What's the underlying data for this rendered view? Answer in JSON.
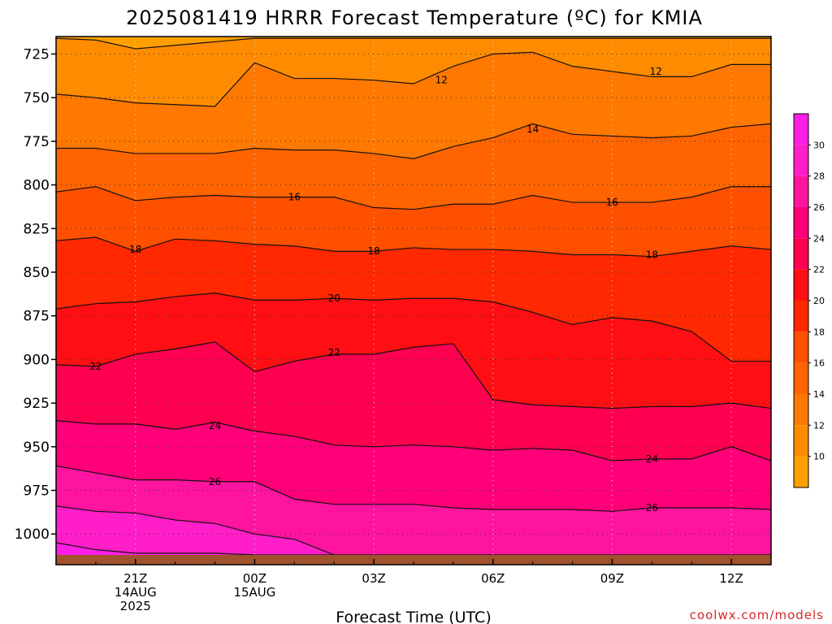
{
  "chart_data": {
    "type": "heatmap",
    "title": "2025081419 HRRR Forecast Temperature (ºC) for KMIA",
    "xlabel": "Forecast Time (UTC)",
    "ylabel": "",
    "credit": "coolwx.com/models",
    "y_axis": {
      "label": "",
      "inverted": true,
      "ylim": [
        1012,
        715
      ],
      "ticks": [
        725,
        750,
        775,
        800,
        825,
        850,
        875,
        900,
        925,
        950,
        975,
        1000
      ]
    },
    "x_axis": {
      "ticks": [
        {
          "label": "21Z",
          "line2": "14AUG",
          "line3": "2025",
          "hour": 2
        },
        {
          "label": "00Z",
          "line2": "15AUG",
          "line3": "",
          "hour": 5
        },
        {
          "label": "03Z",
          "line2": "",
          "line3": "",
          "hour": 8
        },
        {
          "label": "06Z",
          "line2": "",
          "line3": "",
          "hour": 11
        },
        {
          "label": "09Z",
          "line2": "",
          "line3": "",
          "hour": 14
        },
        {
          "label": "12Z",
          "line2": "",
          "line3": "",
          "hour": 17
        }
      ],
      "xlim": [
        0,
        18
      ]
    },
    "grid": true,
    "colorbar": {
      "levels": [
        8,
        10,
        12,
        14,
        16,
        18,
        20,
        22,
        24,
        26,
        28,
        30,
        32
      ],
      "tick_labels": [
        10,
        12,
        14,
        16,
        18,
        20,
        22,
        24,
        26,
        28,
        30
      ],
      "colors": [
        "#FFA000",
        "#FF8C00",
        "#FF7800",
        "#FF6400",
        "#FF5000",
        "#FF2800",
        "#FF0F14",
        "#FF0050",
        "#FF0078",
        "#FF14A0",
        "#FF1EC8",
        "#FF1EE6"
      ]
    },
    "hours": [
      0,
      1,
      2,
      3,
      4,
      5,
      6,
      7,
      8,
      9,
      10,
      11,
      12,
      13,
      14,
      15,
      16,
      17,
      18
    ],
    "isotherms": [
      {
        "value": 10,
        "label": "",
        "pressure": [
          716,
          717,
          722,
          720,
          718,
          716,
          716,
          716,
          716,
          716,
          716,
          716,
          716,
          716,
          716,
          716,
          716,
          716,
          716
        ]
      },
      {
        "value": 12,
        "label": "12",
        "pressure": [
          748,
          750,
          753,
          754,
          755,
          730,
          739,
          739,
          740,
          742,
          732,
          725,
          724,
          732,
          735,
          738,
          738,
          731,
          731
        ]
      },
      {
        "value": 14,
        "label": "14",
        "pressure": [
          779,
          779,
          782,
          782,
          782,
          779,
          780,
          780,
          782,
          785,
          778,
          773,
          765,
          771,
          772,
          773,
          772,
          767,
          765
        ]
      },
      {
        "value": 16,
        "label": "16",
        "pressure": [
          804,
          801,
          809,
          807,
          806,
          807,
          807,
          807,
          813,
          814,
          811,
          811,
          806,
          810,
          810,
          810,
          807,
          801,
          801
        ]
      },
      {
        "value": 18,
        "label": "18",
        "pressure": [
          832,
          830,
          838,
          831,
          832,
          834,
          835,
          838,
          838,
          836,
          837,
          837,
          838,
          840,
          840,
          841,
          838,
          835,
          837
        ]
      },
      {
        "value": 20,
        "label": "20",
        "pressure": [
          871,
          868,
          867,
          864,
          862,
          866,
          866,
          865,
          866,
          865,
          865,
          867,
          873,
          880,
          876,
          878,
          884,
          901,
          901
        ]
      },
      {
        "value": 22,
        "label": "22",
        "pressure": [
          903,
          904,
          897,
          894,
          890,
          907,
          901,
          897,
          897,
          893,
          891,
          923,
          926,
          927,
          928,
          927,
          927,
          925,
          928
        ]
      },
      {
        "value": 24,
        "label": "24",
        "pressure": [
          935,
          937,
          937,
          940,
          936,
          941,
          944,
          949,
          950,
          949,
          950,
          952,
          951,
          952,
          958,
          957,
          957,
          950,
          958
        ]
      },
      {
        "value": 26,
        "label": "26",
        "pressure": [
          961,
          965,
          969,
          969,
          970,
          970,
          980,
          983,
          983,
          983,
          985,
          986,
          986,
          986,
          987,
          985,
          985,
          985,
          986
        ]
      },
      {
        "value": 28,
        "label": "",
        "pressure": [
          984,
          987,
          988,
          992,
          994,
          1000,
          1003,
          1012,
          1012,
          1012,
          1012,
          1012,
          1012,
          1012,
          1012,
          1012,
          1012,
          1012,
          1012
        ]
      },
      {
        "value": 30,
        "label": "",
        "pressure": [
          1005,
          1009,
          1011,
          1011,
          1011,
          1012,
          1012,
          1012,
          1012,
          1012,
          1012,
          1012,
          1012,
          1012,
          1012,
          1012,
          1012,
          1012,
          1012
        ]
      }
    ],
    "labels": [
      {
        "value": "12",
        "hour": 9.7,
        "pressure": 740
      },
      {
        "value": "12",
        "hour": 15.1,
        "pressure": 735
      },
      {
        "value": "14",
        "hour": 12.0,
        "pressure": 768
      },
      {
        "value": "16",
        "hour": 6.0,
        "pressure": 807
      },
      {
        "value": "16",
        "hour": 14.0,
        "pressure": 810
      },
      {
        "value": "18",
        "hour": 2.0,
        "pressure": 837
      },
      {
        "value": "18",
        "hour": 8.0,
        "pressure": 838
      },
      {
        "value": "18",
        "hour": 15.0,
        "pressure": 840
      },
      {
        "value": "20",
        "hour": 7.0,
        "pressure": 865
      },
      {
        "value": "22",
        "hour": 1.0,
        "pressure": 904
      },
      {
        "value": "22",
        "hour": 7.0,
        "pressure": 896
      },
      {
        "value": "24",
        "hour": 4.0,
        "pressure": 938
      },
      {
        "value": "24",
        "hour": 15.0,
        "pressure": 957
      },
      {
        "value": "26",
        "hour": 4.0,
        "pressure": 970
      },
      {
        "value": "26",
        "hour": 15.0,
        "pressure": 985
      }
    ],
    "ground_color": "#A0522D"
  }
}
